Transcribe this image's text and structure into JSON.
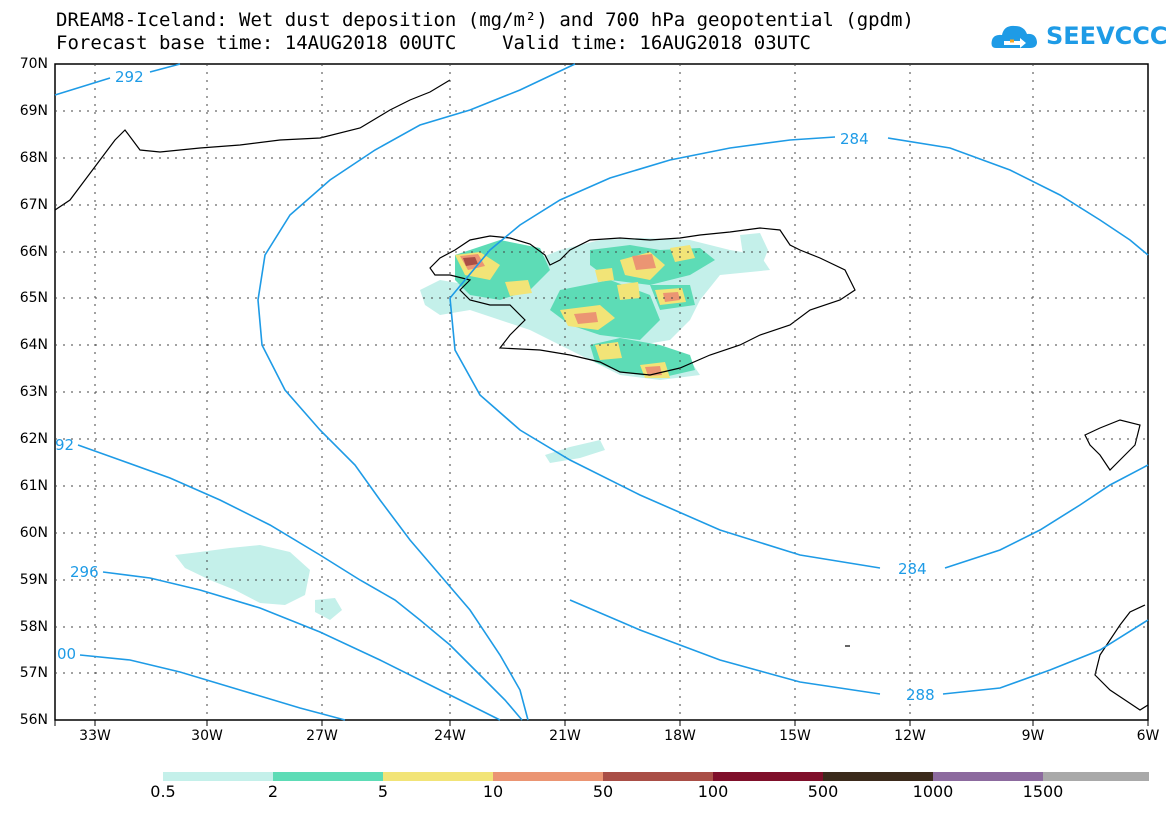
{
  "title": {
    "line1": "DREAM8-Iceland: Wet dust deposition (mg/m²) and 700 hPa geopotential (gpdm)",
    "line2": "Forecast base time: 14AUG2018 00UTC    Valid time: 16AUG2018 03UTC"
  },
  "logo": {
    "text": "SEEVCCC",
    "color": "#1e9be6"
  },
  "map": {
    "lat_labels": [
      "70N",
      "69N",
      "68N",
      "67N",
      "66N",
      "65N",
      "64N",
      "63N",
      "62N",
      "61N",
      "60N",
      "59N",
      "58N",
      "57N",
      "56N"
    ],
    "lon_labels": [
      "33W",
      "30W",
      "27W",
      "24W",
      "21W",
      "18W",
      "15W",
      "12W",
      "9W",
      "6W"
    ],
    "contour_labels": [
      "292",
      "284",
      "92",
      "296",
      "284",
      "00",
      "288"
    ],
    "contour_color": "#1e9be6"
  },
  "legend": {
    "labels": [
      "0.5",
      "2",
      "5",
      "10",
      "50",
      "100",
      "500",
      "1000",
      "1500"
    ],
    "colors": [
      "#c4f0ea",
      "#5ddcb6",
      "#f2e477",
      "#eb9573",
      "#a94e46",
      "#7f0f2a",
      "#3b2a1b",
      "#8c6a9e",
      "#a9a9a9"
    ]
  }
}
